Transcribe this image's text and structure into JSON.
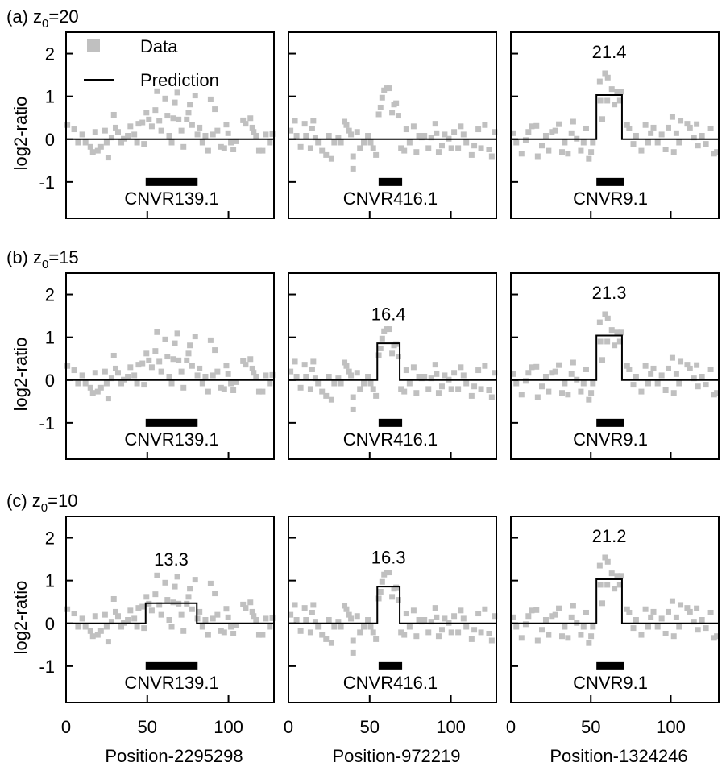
{
  "chart_data": {
    "type": "scatter",
    "ylabel": "log2-ratio",
    "ylim": [
      -1.85,
      2.5
    ],
    "yticks": [
      -1,
      0,
      1,
      2
    ],
    "xticks": [
      0,
      50,
      100
    ],
    "colors": {
      "data": "#c0c0c0",
      "prediction": "#000000",
      "region": "#000000"
    },
    "legend": {
      "data_label": "Data",
      "prediction_label": "Prediction",
      "placement": "top-left"
    },
    "columns": [
      {
        "xlabel": "Position-2295298",
        "xlim": [
          0,
          128
        ],
        "region": {
          "name": "CNVR139.1",
          "start": 49,
          "end": 81
        },
        "x": [
          0.8,
          5,
          7.4,
          10,
          12,
          15,
          16.5,
          18,
          19.5,
          21.5,
          24,
          25,
          26,
          28,
          29.4,
          30.5,
          32,
          34,
          35.5,
          38,
          39.6,
          42,
          43.7,
          44.6,
          47,
          48,
          49.5,
          51,
          52.8,
          55,
          56,
          57.4,
          58.6,
          61,
          62.4,
          63.5,
          65,
          66,
          67,
          68.5,
          69.3,
          71,
          72.3,
          74.3,
          75.4,
          76.2,
          77.6,
          79.5,
          80.9,
          82.2,
          84,
          85.8,
          87.5,
          89,
          90.4,
          91.6,
          93.2,
          95.4,
          97.4,
          98.7,
          99.8,
          101.5,
          103,
          104.5,
          109,
          110.6,
          113.5,
          114.7,
          115.5,
          117,
          118.8,
          121,
          123,
          125.4,
          127
        ],
        "y": [
          0.33,
          0.23,
          -0.08,
          0.11,
          -0.08,
          -0.18,
          -0.3,
          0.17,
          -0.27,
          -0.18,
          0.2,
          -0.08,
          -0.43,
          0.04,
          0.57,
          0.27,
          0.17,
          -0.08,
          0.01,
          0.08,
          0.3,
          0.11,
          -0.08,
          0.36,
          0.39,
          -0.11,
          0.62,
          0.46,
          0.3,
          0.68,
          1.12,
          0.43,
          0.2,
          0.95,
          0.55,
          0.08,
          -0.08,
          0.49,
          0.86,
          1.09,
          0.46,
          0.2,
          -0.18,
          0.46,
          0.62,
          0.81,
          0.33,
          1.02,
          0.11,
          0.27,
          -0.08,
          0.08,
          -0.27,
          0.93,
          0.11,
          0.7,
          0.2,
          -0.18,
          -0.21,
          0.34,
          0.14,
          -0.08,
          -0.24,
          -0.05,
          0.44,
          0.36,
          0.49,
          0.27,
          0.17,
          0.08,
          -0.27,
          -0.27,
          0.11,
          -0.08,
          0.12
        ]
      },
      {
        "xlabel": "Position-972219",
        "xlim": [
          0,
          128
        ],
        "region": {
          "name": "CNVR416.1",
          "start": 55.5,
          "end": 70
        },
        "x": [
          1.3,
          4,
          5,
          7.5,
          10,
          10.8,
          13.6,
          14.6,
          15.3,
          16.6,
          18.2,
          20.7,
          23.2,
          24.9,
          26.5,
          28.2,
          30.7,
          32.3,
          34.5,
          35.7,
          37.3,
          38.5,
          39.8,
          39.8,
          42.3,
          44,
          46.4,
          48.9,
          50.6,
          52.2,
          53.9,
          55.6,
          56.7,
          57.7,
          58.9,
          60.5,
          62.2,
          63.8,
          65,
          66.3,
          67.7,
          69.3,
          71.3,
          72.6,
          74.6,
          77.1,
          78.8,
          80.4,
          82,
          83.7,
          86.2,
          87.9,
          90.4,
          91.2,
          92.5,
          94.5,
          96.2,
          98.7,
          100.3,
          102,
          104.5,
          106.1,
          107.8,
          109.5,
          112.8,
          114.4,
          116.9,
          118.6,
          121,
          123.5,
          125.2,
          126.9
        ],
        "y": [
          0.2,
          0.43,
          0.08,
          -0.18,
          0.36,
          0.08,
          -0.21,
          0.25,
          0.43,
          0.04,
          -0.08,
          -0.27,
          -0.37,
          0.08,
          -0.46,
          -0.08,
          0.04,
          -0.08,
          0.41,
          0.33,
          0.2,
          0.11,
          -0.4,
          -0.69,
          0.17,
          -0.21,
          -0.08,
          0.08,
          -0.08,
          -0.21,
          -0.37,
          0.58,
          0.74,
          0.97,
          1.14,
          1.19,
          1.19,
          0.62,
          0.81,
          0.84,
          0.55,
          -0.21,
          -0.27,
          0.23,
          -0.08,
          0.3,
          -0.3,
          0.08,
          0.04,
          0.08,
          -0.21,
          0.04,
          0.36,
          0.14,
          -0.3,
          -0.15,
          0.11,
          0.01,
          -0.21,
          0.17,
          -0.21,
          0.3,
          0.11,
          -0.08,
          -0.37,
          -0.15,
          0.23,
          -0.21,
          0.33,
          -0.24,
          -0.4,
          0.17
        ]
      },
      {
        "xlabel": "Position-1324246",
        "xlim": [
          0,
          130
        ],
        "region": {
          "name": "CNVR9.1",
          "start": 53.5,
          "end": 71
        },
        "x": [
          1.3,
          3.4,
          6.7,
          9.3,
          11,
          13.1,
          16,
          16.8,
          19.4,
          21.9,
          23.6,
          25.6,
          27.8,
          30,
          32,
          33.7,
          35.7,
          37.9,
          39,
          41.2,
          43.8,
          45.5,
          47.1,
          48.8,
          50.2,
          51.3,
          55.6,
          56,
          57.2,
          58.9,
          60.3,
          60.6,
          63.1,
          64.8,
          66.5,
          68.2,
          69,
          72.7,
          74,
          76.6,
          78.3,
          81.6,
          84.2,
          85.9,
          87.5,
          89.2,
          91.8,
          94.3,
          96.8,
          98.5,
          101,
          101.9,
          103.5,
          105.2,
          106.1,
          110.3,
          112,
          114.5,
          116.2,
          117,
          119.5,
          122,
          125,
          127.1,
          128.8
        ],
        "y": [
          0.14,
          -0.08,
          -0.34,
          -0.02,
          0.17,
          0.3,
          0.31,
          -0.4,
          -0.15,
          0.08,
          -0.27,
          0.17,
          0.2,
          0.35,
          -0.3,
          -0.08,
          -0.34,
          0.14,
          0.41,
          0.01,
          -0.27,
          -0.08,
          0.25,
          -0.46,
          -0.3,
          -0.08,
          1.35,
          0.9,
          0.47,
          1.54,
          0.9,
          1.44,
          1.17,
          0.81,
          1.11,
          0.9,
          1.11,
          0.33,
          0.25,
          -0.11,
          0.08,
          -0.27,
          0.33,
          -0.08,
          0.14,
          0.27,
          -0.08,
          0.11,
          -0.24,
          0.27,
          0.52,
          -0.3,
          0.14,
          -0.08,
          0.43,
          0.36,
          0.27,
          0.04,
          0.35,
          -0.15,
          0.08,
          -0.11,
          0.25,
          -0.34,
          -0.3
        ]
      }
    ],
    "rows": [
      {
        "label_prefix": "(a) z",
        "label_sub": "0",
        "label_suffix": "=20",
        "panels": [
          {
            "step": null,
            "score": null
          },
          {
            "step": null,
            "score": null
          },
          {
            "step": {
              "start": 53.5,
              "end": 69.5,
              "value": 1.03
            },
            "score": "21.4"
          }
        ]
      },
      {
        "label_prefix": "(b) z",
        "label_sub": "0",
        "label_suffix": "=15",
        "panels": [
          {
            "step": null,
            "score": null
          },
          {
            "step": {
              "start": 54.7,
              "end": 68.5,
              "value": 0.86
            },
            "score": "16.4"
          },
          {
            "step": {
              "start": 53.5,
              "end": 69.5,
              "value": 1.04
            },
            "score": "21.3"
          }
        ]
      },
      {
        "label_prefix": "(c) z",
        "label_sub": "0",
        "label_suffix": "=10",
        "panels": [
          {
            "step": {
              "start": 49,
              "end": 80.5,
              "value": 0.47
            },
            "score": "13.3"
          },
          {
            "step": {
              "start": 54.7,
              "end": 68.5,
              "value": 0.86
            },
            "score": "16.3"
          },
          {
            "step": {
              "start": 53.5,
              "end": 69.5,
              "value": 1.03
            },
            "score": "21.2"
          }
        ]
      }
    ]
  }
}
